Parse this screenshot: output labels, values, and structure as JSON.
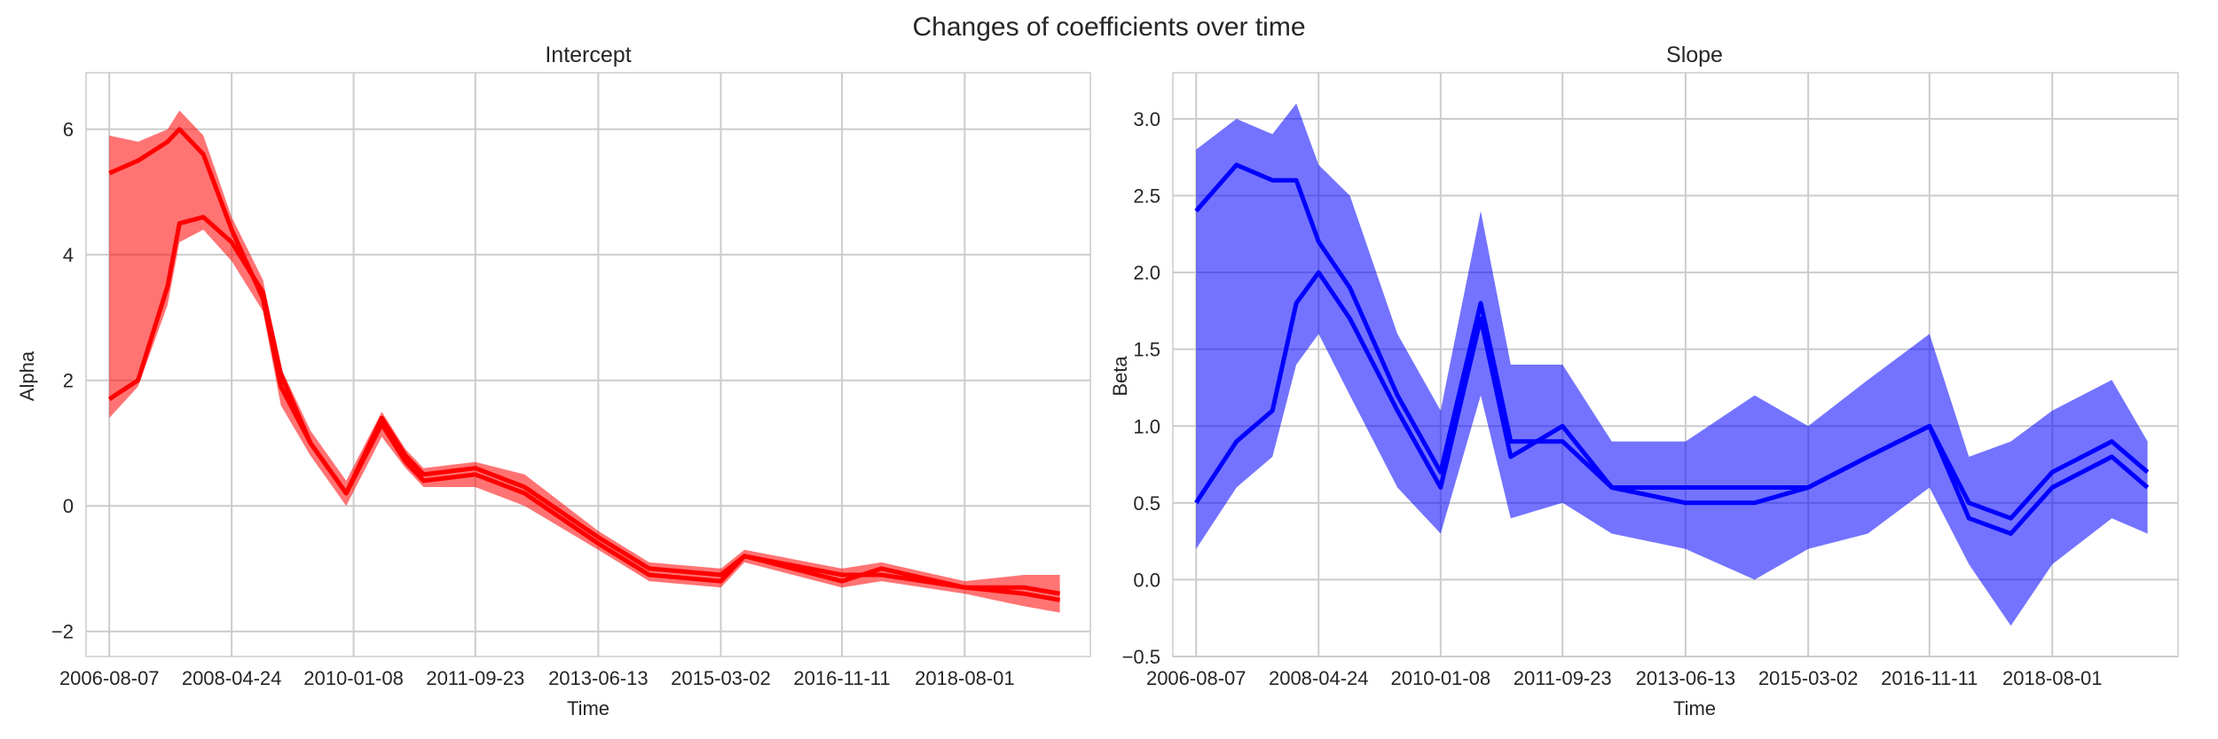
{
  "figure": {
    "title": "Changes of coefficients over time"
  },
  "chart_data": [
    {
      "type": "line",
      "title": "Intercept",
      "xlabel": "Time",
      "ylabel": "Alpha",
      "series_color": "#ff0000",
      "grid": true,
      "xlim": [
        "2006-04-10",
        "2020-05-05"
      ],
      "ylim": [
        -2.4,
        6.9
      ],
      "x_ticks": [
        "2006-08-07",
        "2008-04-24",
        "2010-01-08",
        "2011-09-23",
        "2013-06-13",
        "2015-03-02",
        "2016-11-11",
        "2018-08-01"
      ],
      "y_ticks": [
        -2,
        0,
        2,
        4,
        6
      ],
      "band_samples": [
        {
          "x": "2006-08-07",
          "y_low": 1.4,
          "y_high": 5.9
        },
        {
          "x": "2007-01-01",
          "y_low": 1.9,
          "y_high": 5.8
        },
        {
          "x": "2007-06-01",
          "y_low": 3.2,
          "y_high": 6.0
        },
        {
          "x": "2007-08-01",
          "y_low": 4.2,
          "y_high": 6.3
        },
        {
          "x": "2007-12-01",
          "y_low": 4.4,
          "y_high": 5.9
        },
        {
          "x": "2008-04-24",
          "y_low": 3.9,
          "y_high": 4.6
        },
        {
          "x": "2008-10-01",
          "y_low": 3.1,
          "y_high": 3.6
        },
        {
          "x": "2009-01-01",
          "y_low": 1.6,
          "y_high": 2.2
        },
        {
          "x": "2009-06-01",
          "y_low": 0.8,
          "y_high": 1.2
        },
        {
          "x": "2009-12-01",
          "y_low": 0.0,
          "y_high": 0.4
        },
        {
          "x": "2010-06-01",
          "y_low": 1.1,
          "y_high": 1.5
        },
        {
          "x": "2010-10-01",
          "y_low": 0.6,
          "y_high": 0.9
        },
        {
          "x": "2011-01-01",
          "y_low": 0.3,
          "y_high": 0.6
        },
        {
          "x": "2011-09-23",
          "y_low": 0.3,
          "y_high": 0.7
        },
        {
          "x": "2012-06-01",
          "y_low": 0.0,
          "y_high": 0.5
        },
        {
          "x": "2013-06-13",
          "y_low": -0.7,
          "y_high": -0.4
        },
        {
          "x": "2014-03-01",
          "y_low": -1.2,
          "y_high": -0.9
        },
        {
          "x": "2015-03-02",
          "y_low": -1.3,
          "y_high": -1.0
        },
        {
          "x": "2015-07-01",
          "y_low": -0.9,
          "y_high": -0.7
        },
        {
          "x": "2016-11-11",
          "y_low": -1.3,
          "y_high": -1.0
        },
        {
          "x": "2017-06-01",
          "y_low": -1.2,
          "y_high": -0.9
        },
        {
          "x": "2018-08-01",
          "y_low": -1.4,
          "y_high": -1.2
        },
        {
          "x": "2019-06-01",
          "y_low": -1.6,
          "y_high": -1.1
        },
        {
          "x": "2019-12-01",
          "y_low": -1.7,
          "y_high": -1.1
        }
      ],
      "series": [
        {
          "values": [
            [
              "2006-08-07",
              1.7
            ],
            [
              "2007-01-01",
              2.0
            ],
            [
              "2007-06-01",
              3.5
            ],
            [
              "2007-08-01",
              4.5
            ],
            [
              "2007-12-01",
              4.6
            ],
            [
              "2008-04-24",
              4.2
            ],
            [
              "2008-10-01",
              3.4
            ],
            [
              "2009-01-01",
              2.1
            ],
            [
              "2009-06-01",
              1.0
            ],
            [
              "2009-12-01",
              0.2
            ],
            [
              "2010-06-01",
              1.4
            ],
            [
              "2010-10-01",
              0.8
            ],
            [
              "2011-01-01",
              0.5
            ],
            [
              "2011-09-23",
              0.6
            ],
            [
              "2012-06-01",
              0.3
            ],
            [
              "2013-06-13",
              -0.5
            ],
            [
              "2014-03-01",
              -1.0
            ],
            [
              "2015-03-02",
              -1.1
            ],
            [
              "2015-07-01",
              -0.8
            ],
            [
              "2016-11-11",
              -1.2
            ],
            [
              "2017-06-01",
              -1.0
            ],
            [
              "2018-08-01",
              -1.3
            ],
            [
              "2019-06-01",
              -1.3
            ],
            [
              "2019-12-01",
              -1.4
            ]
          ]
        },
        {
          "values": [
            [
              "2006-08-07",
              5.3
            ],
            [
              "2007-01-01",
              5.5
            ],
            [
              "2007-06-01",
              5.8
            ],
            [
              "2007-08-01",
              6.0
            ],
            [
              "2007-12-01",
              5.6
            ],
            [
              "2008-04-24",
              4.4
            ],
            [
              "2008-10-01",
              3.3
            ],
            [
              "2009-01-01",
              1.9
            ],
            [
              "2009-06-01",
              1.0
            ],
            [
              "2009-12-01",
              0.2
            ],
            [
              "2010-06-01",
              1.3
            ],
            [
              "2010-10-01",
              0.7
            ],
            [
              "2011-01-01",
              0.4
            ],
            [
              "2011-09-23",
              0.5
            ],
            [
              "2012-06-01",
              0.2
            ],
            [
              "2013-06-13",
              -0.6
            ],
            [
              "2014-03-01",
              -1.1
            ],
            [
              "2015-03-02",
              -1.2
            ],
            [
              "2015-07-01",
              -0.8
            ],
            [
              "2016-11-11",
              -1.1
            ],
            [
              "2017-06-01",
              -1.1
            ],
            [
              "2018-08-01",
              -1.3
            ],
            [
              "2019-06-01",
              -1.4
            ],
            [
              "2019-12-01",
              -1.5
            ]
          ]
        }
      ]
    },
    {
      "type": "line",
      "title": "Slope",
      "xlabel": "Time",
      "ylabel": "Beta",
      "series_color": "#0000ff",
      "grid": true,
      "xlim": [
        "2006-04-10",
        "2020-05-05"
      ],
      "ylim": [
        -0.5,
        3.3
      ],
      "x_ticks": [
        "2006-08-07",
        "2008-04-24",
        "2010-01-08",
        "2011-09-23",
        "2013-06-13",
        "2015-03-02",
        "2016-11-11",
        "2018-08-01"
      ],
      "y_ticks": [
        -0.5,
        0.0,
        0.5,
        1.0,
        1.5,
        2.0,
        2.5,
        3.0
      ],
      "band_samples": [
        {
          "x": "2006-08-07",
          "y_low": 0.2,
          "y_high": 2.8
        },
        {
          "x": "2007-03-01",
          "y_low": 0.6,
          "y_high": 3.0
        },
        {
          "x": "2007-09-01",
          "y_low": 0.8,
          "y_high": 2.9
        },
        {
          "x": "2008-01-01",
          "y_low": 1.4,
          "y_high": 3.1
        },
        {
          "x": "2008-04-24",
          "y_low": 1.6,
          "y_high": 2.7
        },
        {
          "x": "2008-10-01",
          "y_low": 1.2,
          "y_high": 2.5
        },
        {
          "x": "2009-06-01",
          "y_low": 0.6,
          "y_high": 1.6
        },
        {
          "x": "2010-01-08",
          "y_low": 0.3,
          "y_high": 1.1
        },
        {
          "x": "2010-08-01",
          "y_low": 1.2,
          "y_high": 2.4
        },
        {
          "x": "2011-01-01",
          "y_low": 0.4,
          "y_high": 1.4
        },
        {
          "x": "2011-09-23",
          "y_low": 0.5,
          "y_high": 1.4
        },
        {
          "x": "2012-06-01",
          "y_low": 0.3,
          "y_high": 0.9
        },
        {
          "x": "2013-06-13",
          "y_low": 0.2,
          "y_high": 0.9
        },
        {
          "x": "2014-06-01",
          "y_low": 0.0,
          "y_high": 1.2
        },
        {
          "x": "2015-03-02",
          "y_low": 0.2,
          "y_high": 1.0
        },
        {
          "x": "2016-01-01",
          "y_low": 0.3,
          "y_high": 1.3
        },
        {
          "x": "2016-11-11",
          "y_low": 0.6,
          "y_high": 1.6
        },
        {
          "x": "2017-06-01",
          "y_low": 0.1,
          "y_high": 0.8
        },
        {
          "x": "2018-01-01",
          "y_low": -0.3,
          "y_high": 0.9
        },
        {
          "x": "2018-08-01",
          "y_low": 0.1,
          "y_high": 1.1
        },
        {
          "x": "2019-06-01",
          "y_low": 0.4,
          "y_high": 1.3
        },
        {
          "x": "2019-12-01",
          "y_low": 0.3,
          "y_high": 0.9
        }
      ],
      "series": [
        {
          "values": [
            [
              "2006-08-07",
              0.5
            ],
            [
              "2007-03-01",
              0.9
            ],
            [
              "2007-09-01",
              1.1
            ],
            [
              "2008-01-01",
              1.8
            ],
            [
              "2008-04-24",
              2.0
            ],
            [
              "2008-10-01",
              1.7
            ],
            [
              "2009-06-01",
              1.1
            ],
            [
              "2010-01-08",
              0.6
            ],
            [
              "2010-08-01",
              1.7
            ],
            [
              "2011-01-01",
              0.8
            ],
            [
              "2011-09-23",
              1.0
            ],
            [
              "2012-06-01",
              0.6
            ],
            [
              "2013-06-13",
              0.5
            ],
            [
              "2014-06-01",
              0.5
            ],
            [
              "2015-03-02",
              0.6
            ],
            [
              "2016-01-01",
              0.8
            ],
            [
              "2016-11-11",
              1.0
            ],
            [
              "2017-06-01",
              0.4
            ],
            [
              "2018-01-01",
              0.3
            ],
            [
              "2018-08-01",
              0.6
            ],
            [
              "2019-06-01",
              0.8
            ],
            [
              "2019-12-01",
              0.6
            ]
          ]
        },
        {
          "values": [
            [
              "2006-08-07",
              2.4
            ],
            [
              "2007-03-01",
              2.7
            ],
            [
              "2007-09-01",
              2.6
            ],
            [
              "2008-01-01",
              2.6
            ],
            [
              "2008-04-24",
              2.2
            ],
            [
              "2008-10-01",
              1.9
            ],
            [
              "2009-06-01",
              1.2
            ],
            [
              "2010-01-08",
              0.7
            ],
            [
              "2010-08-01",
              1.8
            ],
            [
              "2011-01-01",
              0.9
            ],
            [
              "2011-09-23",
              0.9
            ],
            [
              "2012-06-01",
              0.6
            ],
            [
              "2013-06-13",
              0.6
            ],
            [
              "2014-06-01",
              0.6
            ],
            [
              "2015-03-02",
              0.6
            ],
            [
              "2016-01-01",
              0.8
            ],
            [
              "2016-11-11",
              1.0
            ],
            [
              "2017-06-01",
              0.5
            ],
            [
              "2018-01-01",
              0.4
            ],
            [
              "2018-08-01",
              0.7
            ],
            [
              "2019-06-01",
              0.9
            ],
            [
              "2019-12-01",
              0.7
            ]
          ]
        }
      ]
    }
  ]
}
